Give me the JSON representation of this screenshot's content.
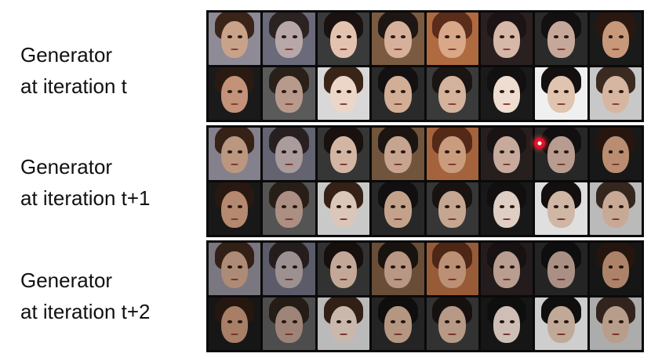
{
  "rows": [
    {
      "line1": "Generator",
      "line2": "at iteration t"
    },
    {
      "line1": "Generator",
      "line2": "at iteration t+1"
    },
    {
      "line1": "Generator",
      "line2": "at iteration t+2"
    }
  ],
  "tile_palettes": [
    [
      "#c9a28a",
      "#3a2418",
      "#8e8a96"
    ],
    [
      "#b7a7a8",
      "#2b2222",
      "#6a6a7a"
    ],
    [
      "#e3c3b0",
      "#1a1210",
      "#3a3a3a"
    ],
    [
      "#d6b09a",
      "#1d1612",
      "#7a5a40"
    ],
    [
      "#d9a888",
      "#5a2c1a",
      "#b06a40"
    ],
    [
      "#d6b7a8",
      "#1c1414",
      "#2a2020"
    ],
    [
      "#c6a89a",
      "#121010",
      "#2a2a2a"
    ],
    [
      "#c8987a",
      "#2a1810",
      "#1a1a1a"
    ],
    [
      "#c39278",
      "#2b1a12",
      "#1a1a1a"
    ],
    [
      "#b89a8c",
      "#2a201a",
      "#5a5a5a"
    ],
    [
      "#ecd6c8",
      "#3a2418",
      "#d8d8d8"
    ],
    [
      "#d2ae96",
      "#121010",
      "#2a2a2a"
    ],
    [
      "#d4b29c",
      "#1a1412",
      "#3a3a3a"
    ],
    [
      "#f0ddd2",
      "#121010",
      "#1a1a1a"
    ],
    [
      "#e0c4b0",
      "#141010",
      "#f0f0f0"
    ],
    [
      "#d6b6a0",
      "#3a2a20",
      "#c8c8c8"
    ]
  ]
}
